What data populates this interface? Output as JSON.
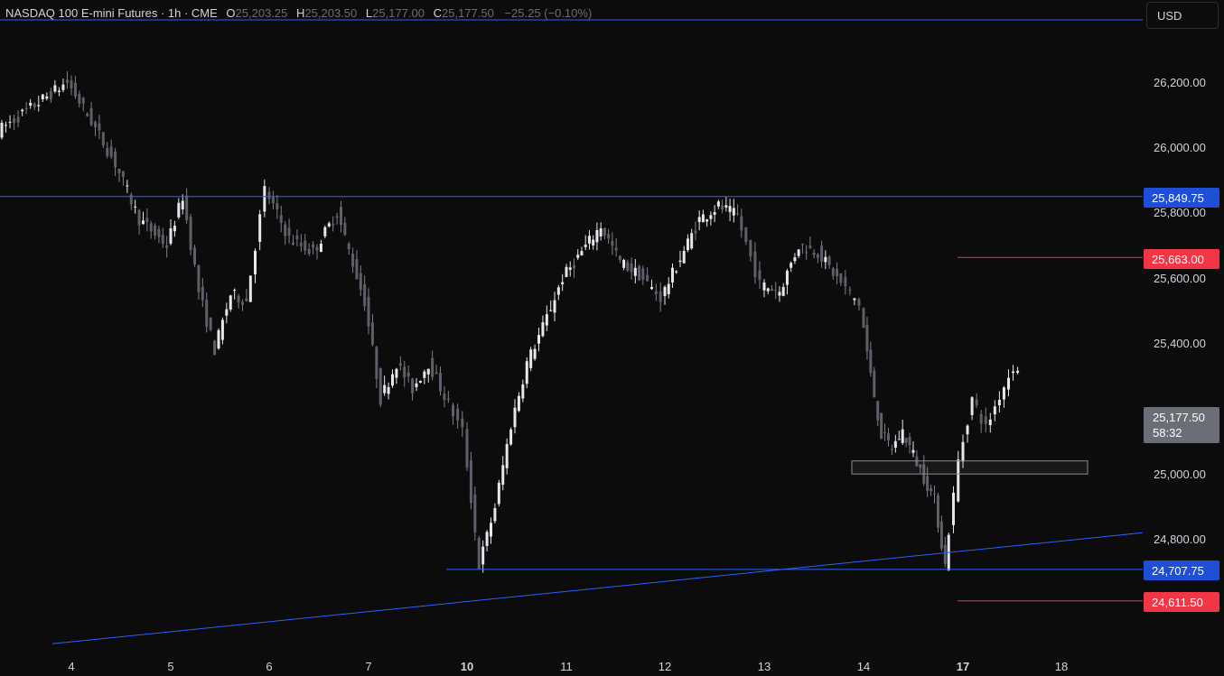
{
  "header": {
    "symbol": "NASDAQ 100 E-mini Futures · 1h · CME",
    "open_label": "O",
    "open": "25,203.25",
    "high_label": "H",
    "high": "25,203.50",
    "low_label": "L",
    "low": "25,177.00",
    "close_label": "C",
    "close": "25,177.50",
    "change": "−25.25 (−0.10%)"
  },
  "currency": "USD",
  "y_axis_labels": [
    "26,200.00",
    "26,000.00",
    "25,800.00",
    "25,600.00",
    "25,400.00",
    "25,000.00",
    "24,800.00"
  ],
  "x_axis_labels": [
    {
      "text": "4",
      "bold": false
    },
    {
      "text": "5",
      "bold": false
    },
    {
      "text": "6",
      "bold": false
    },
    {
      "text": "7",
      "bold": false
    },
    {
      "text": "10",
      "bold": true
    },
    {
      "text": "11",
      "bold": false
    },
    {
      "text": "12",
      "bold": false
    },
    {
      "text": "13",
      "bold": false
    },
    {
      "text": "14",
      "bold": false
    },
    {
      "text": "17",
      "bold": true
    },
    {
      "text": "18",
      "bold": false
    }
  ],
  "price_tags": [
    {
      "text": "25,849.75",
      "color": "blue"
    },
    {
      "text": "25,663.00",
      "color": "red"
    },
    {
      "text": "24,707.75",
      "color": "blue"
    },
    {
      "text": "24,611.50",
      "color": "red"
    }
  ],
  "last_price": {
    "price": "25,177.50",
    "countdown": "58:32"
  },
  "colors": {
    "background": "#0c0c0d",
    "candle": "#d1d4dc",
    "blue_line": "#2962ff",
    "red_line": "#f23645",
    "last_price_box": "#6b6e77"
  },
  "chart_data": {
    "type": "candlestick",
    "y_range": [
      24500,
      26400
    ],
    "levels": [
      {
        "price": 25849.75,
        "color": "blue",
        "style": "horizontal line"
      },
      {
        "price": 25663.0,
        "color": "red",
        "style": "short horizontal line"
      },
      {
        "price": 24707.75,
        "color": "blue",
        "style": "horizontal line from swing low"
      },
      {
        "price": 24611.5,
        "color": "red",
        "style": "short horizontal line"
      }
    ],
    "trendline": {
      "from": {
        "date": "4",
        "price": 24480
      },
      "to": {
        "date": "18",
        "price": 24820
      }
    },
    "zone": {
      "from": "14",
      "to": "17",
      "price_low": 25000,
      "price_high": 25040
    },
    "path_points": [
      {
        "date": "3",
        "price": 26050
      },
      {
        "date": "4",
        "price": 26200
      },
      {
        "date": "4",
        "price": 26080
      },
      {
        "date": "4",
        "price": 25950
      },
      {
        "date": "4",
        "price": 25780
      },
      {
        "date": "5",
        "price": 25700
      },
      {
        "date": "5",
        "price": 25850
      },
      {
        "date": "5",
        "price": 25560
      },
      {
        "date": "5",
        "price": 25380
      },
      {
        "date": "5",
        "price": 25550
      },
      {
        "date": "5",
        "price": 25530
      },
      {
        "date": "6",
        "price": 25870
      },
      {
        "date": "6",
        "price": 25720
      },
      {
        "date": "6",
        "price": 25680
      },
      {
        "date": "6",
        "price": 25800
      },
      {
        "date": "7",
        "price": 25530
      },
      {
        "date": "7",
        "price": 25230
      },
      {
        "date": "7",
        "price": 25340
      },
      {
        "date": "7",
        "price": 25260
      },
      {
        "date": "7",
        "price": 25340
      },
      {
        "date": "7",
        "price": 25240
      },
      {
        "date": "10",
        "price": 25130
      },
      {
        "date": "10",
        "price": 24720
      },
      {
        "date": "10",
        "price": 24900
      },
      {
        "date": "10",
        "price": 25150
      },
      {
        "date": "10",
        "price": 25340
      },
      {
        "date": "10",
        "price": 25450
      },
      {
        "date": "11",
        "price": 25600
      },
      {
        "date": "11",
        "price": 25680
      },
      {
        "date": "11",
        "price": 25760
      },
      {
        "date": "11",
        "price": 25650
      },
      {
        "date": "11",
        "price": 25610
      },
      {
        "date": "12",
        "price": 25540
      },
      {
        "date": "12",
        "price": 25660
      },
      {
        "date": "12",
        "price": 25780
      },
      {
        "date": "12",
        "price": 25820
      },
      {
        "date": "12",
        "price": 25790
      },
      {
        "date": "13",
        "price": 25580
      },
      {
        "date": "13",
        "price": 25560
      },
      {
        "date": "13",
        "price": 25700
      },
      {
        "date": "13",
        "price": 25680
      },
      {
        "date": "13",
        "price": 25600
      },
      {
        "date": "14",
        "price": 25520
      },
      {
        "date": "14",
        "price": 25300
      },
      {
        "date": "14",
        "price": 25120
      },
      {
        "date": "14",
        "price": 25080
      },
      {
        "date": "14",
        "price": 25130
      },
      {
        "date": "14",
        "price": 25060
      },
      {
        "date": "14",
        "price": 24990
      },
      {
        "date": "14",
        "price": 24920
      },
      {
        "date": "14",
        "price": 24720
      },
      {
        "date": "17",
        "price": 25040
      },
      {
        "date": "17",
        "price": 25230
      },
      {
        "date": "17",
        "price": 25140
      },
      {
        "date": "17",
        "price": 25240
      },
      {
        "date": "17",
        "price": 25330
      },
      {
        "date": "17",
        "price": 25260
      },
      {
        "date": "17",
        "price": 25180
      }
    ]
  }
}
